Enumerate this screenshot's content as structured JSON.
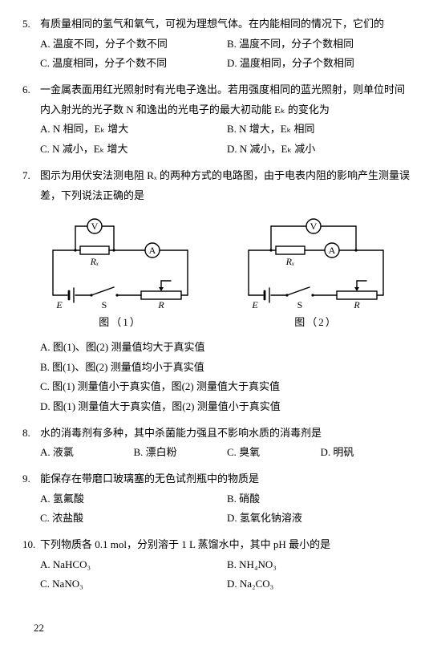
{
  "page_number": "22",
  "questions": [
    {
      "num": "5.",
      "stem": "有质量相同的氢气和氧气，可视为理想气体。在内能相同的情况下，它们的",
      "layout": "2col",
      "options": [
        "A. 温度不同，分子个数不同",
        "B. 温度不同，分子个数相同",
        "C. 温度相同，分子个数不同",
        "D. 温度相同，分子个数相同"
      ]
    },
    {
      "num": "6.",
      "stem": "一金属表面用红光照射时有光电子逸出。若用强度相同的蓝光照射，则单位时间内入射光的光子数 N 和逸出的光电子的最大初动能 Eₖ 的变化为",
      "layout": "2col",
      "options": [
        "A. N 相同，Eₖ 增大",
        "B. N 增大，Eₖ 相同",
        "C. N 减小，Eₖ 增大",
        "D. N 减小，Eₖ 减小"
      ]
    },
    {
      "num": "7.",
      "stem": "图示为用伏安法测电阻 Rₓ 的两种方式的电路图，由于电表内阻的影响产生测量误差，下列说法正确的是",
      "has_figures": true,
      "layout": "1col",
      "options": [
        "A. 图(1)、图(2) 测量值均大于真实值",
        "B. 图(1)、图(2) 测量值均小于真实值",
        "C. 图(1) 测量值小于真实值，图(2) 测量值大于真实值",
        "D. 图(1) 测量值大于真实值，图(2) 测量值小于真实值"
      ]
    },
    {
      "num": "8.",
      "stem": "水的消毒剂有多种，其中杀菌能力强且不影响水质的消毒剂是",
      "layout": "4col",
      "options": [
        "A. 液氯",
        "B. 漂白粉",
        "C. 臭氧",
        "D. 明矾"
      ]
    },
    {
      "num": "9.",
      "stem": "能保存在带磨口玻璃塞的无色试剂瓶中的物质是",
      "layout": "2col",
      "options": [
        "A. 氢氟酸",
        "B. 硝酸",
        "C. 浓盐酸",
        "D. 氢氧化钠溶液"
      ]
    },
    {
      "num": "10.",
      "stem": "下列物质各 0.1 mol，分别溶于 1 L 蒸馏水中，其中 pH 最小的是",
      "layout": "2col",
      "options": [
        "A. NaHCO₃",
        "B. NH₄NO₃",
        "C. NaNO₃",
        "D. Na₂CO₃"
      ]
    }
  ],
  "figures": {
    "caption1": "图（1）",
    "caption2": "图（2）",
    "labels": {
      "V": "V",
      "A": "A",
      "Rx": "Rₓ",
      "E": "E",
      "S": "S",
      "R": "R"
    },
    "svg_style": {
      "stroke": "#000000",
      "stroke_width": 1.4,
      "fill": "none",
      "font_size": 12
    }
  }
}
